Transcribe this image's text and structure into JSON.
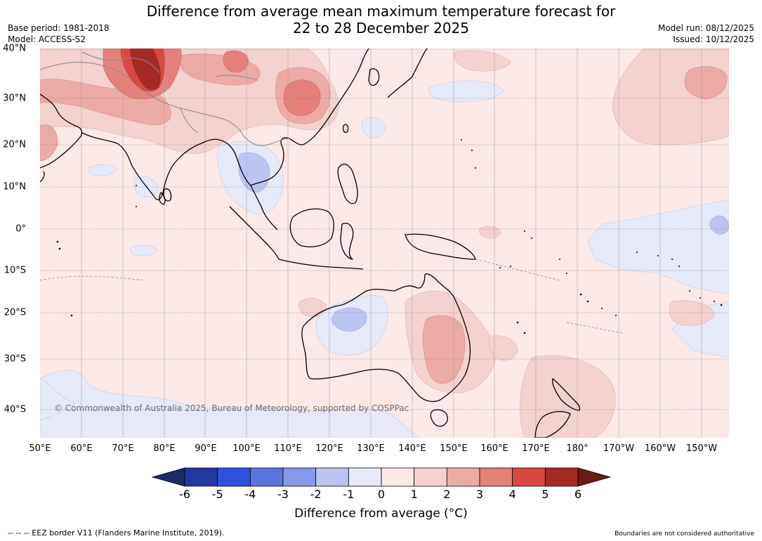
{
  "title": {
    "line1": "Difference from average mean maximum temperature forecast for",
    "line2": "22 to 28 December 2025"
  },
  "meta": {
    "base_period": "Base period: 1981-2018",
    "model": "Model: ACCESS-S2",
    "model_run": "Model run: 08/12/2025",
    "issued": "Issued: 10/12/2025"
  },
  "map": {
    "copyright": "© Commonwealth of Australia 2025, Bureau of Meteorology, supported by COSPPac",
    "lat_labels": [
      "40°N",
      "30°N",
      "20°N",
      "10°N",
      "0°",
      "10°S",
      "20°S",
      "30°S",
      "40°S"
    ],
    "lon_labels": [
      "50°E",
      "60°E",
      "70°E",
      "80°E",
      "90°E",
      "100°E",
      "110°E",
      "120°E",
      "130°E",
      "140°E",
      "150°E",
      "160°E",
      "170°E",
      "180°",
      "170°W",
      "160°W",
      "150°W"
    ]
  },
  "colorbar": {
    "label": "Difference from average (°C)",
    "ticks": [
      "-6",
      "-5",
      "-4",
      "-3",
      "-2",
      "-1",
      "0",
      "1",
      "2",
      "3",
      "4",
      "5",
      "6"
    ],
    "under_color": "#1b2a6b",
    "over_color": "#6e1a16",
    "colors": [
      "#2438a3",
      "#3050e0",
      "#5b74e0",
      "#8898e8",
      "#bcc4f2",
      "#e6e9f8",
      "#fbe9e8",
      "#f4d2d0",
      "#ecaaa6",
      "#e6807a",
      "#d94840",
      "#a62a24"
    ]
  },
  "footer": {
    "eez": "-- -- -- EEZ border V11 (Flanders Marine Institute, 2019).",
    "boundaries": "Boundaries are not considered authoritative"
  }
}
